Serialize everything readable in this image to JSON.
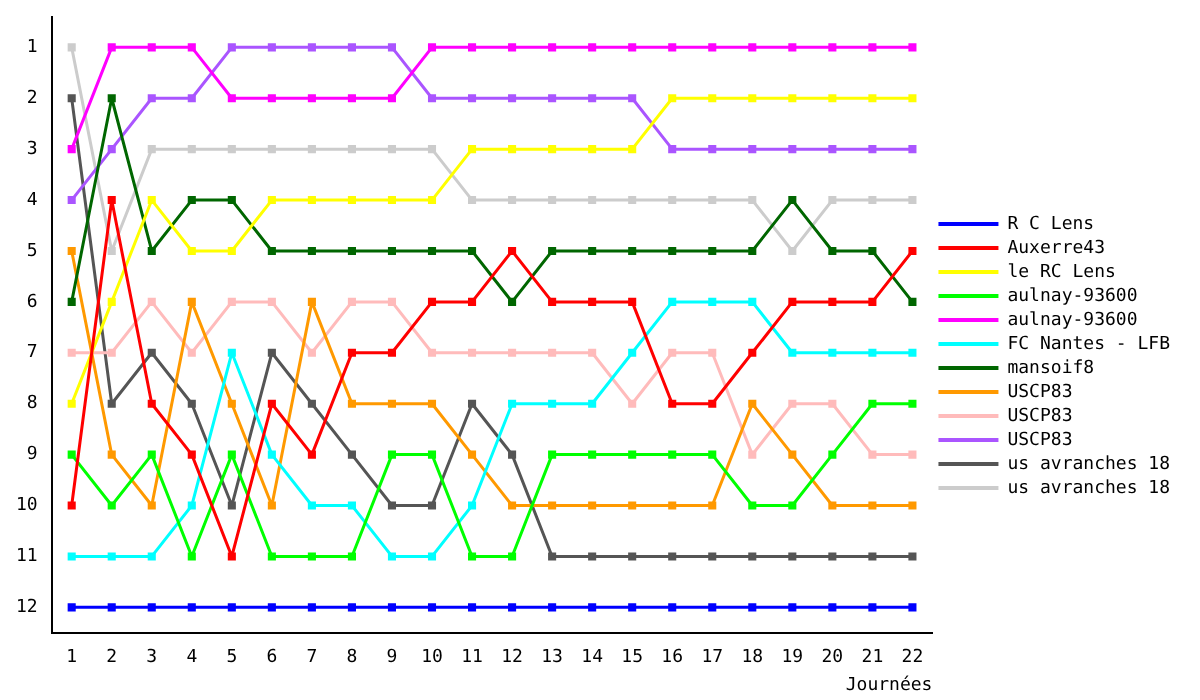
{
  "chart_data": {
    "type": "line",
    "xlabel": "Journées",
    "x": [
      1,
      2,
      3,
      4,
      5,
      6,
      7,
      8,
      9,
      10,
      11,
      12,
      13,
      14,
      15,
      16,
      17,
      18,
      19,
      20,
      21,
      22
    ],
    "xlim": [
      0.5,
      22.5
    ],
    "xticks": [
      1,
      2,
      3,
      4,
      5,
      6,
      7,
      8,
      9,
      10,
      11,
      12,
      13,
      14,
      15,
      16,
      17,
      18,
      19,
      20,
      21,
      22
    ],
    "ylim": [
      12.5,
      0.4
    ],
    "yticks": [
      1,
      2,
      3,
      4,
      5,
      6,
      7,
      8,
      9,
      10,
      11,
      12
    ],
    "grid": false,
    "legend": "right",
    "marker": "square",
    "line_style": "solid",
    "series": [
      {
        "name": "R C Lens",
        "color": "#0000ff",
        "values": [
          12,
          12,
          12,
          12,
          12,
          12,
          12,
          12,
          12,
          12,
          12,
          12,
          12,
          12,
          12,
          12,
          12,
          12,
          12,
          12,
          12,
          12
        ]
      },
      {
        "name": "Auxerre43",
        "color": "#ff0000",
        "values": [
          10,
          4,
          8,
          9,
          11,
          8,
          9,
          7,
          7,
          6,
          6,
          5,
          6,
          6,
          6,
          8,
          8,
          7,
          6,
          6,
          6,
          5
        ]
      },
      {
        "name": "le RC Lens",
        "color": "#ffff00",
        "values": [
          8,
          6,
          4,
          5,
          5,
          4,
          4,
          4,
          4,
          4,
          3,
          3,
          3,
          3,
          3,
          2,
          2,
          2,
          2,
          2,
          2,
          2
        ]
      },
      {
        "name": "aulnay-93600",
        "color": "#00ff00",
        "values": [
          9,
          10,
          9,
          11,
          9,
          11,
          11,
          11,
          9,
          9,
          11,
          11,
          9,
          9,
          9,
          9,
          9,
          10,
          10,
          9,
          8,
          8
        ]
      },
      {
        "name": "aulnay-93600",
        "color": "#ff00ff",
        "values": [
          3,
          1,
          1,
          1,
          2,
          2,
          2,
          2,
          2,
          1,
          1,
          1,
          1,
          1,
          1,
          1,
          1,
          1,
          1,
          1,
          1,
          1
        ]
      },
      {
        "name": "FC Nantes - LFB",
        "color": "#00ffff",
        "values": [
          11,
          11,
          11,
          10,
          7,
          9,
          10,
          10,
          11,
          11,
          10,
          8,
          8,
          8,
          7,
          6,
          6,
          6,
          7,
          7,
          7,
          7
        ]
      },
      {
        "name": "mansoif8",
        "color": "#006600",
        "values": [
          6,
          2,
          5,
          4,
          4,
          5,
          5,
          5,
          5,
          5,
          5,
          6,
          5,
          5,
          5,
          5,
          5,
          5,
          4,
          5,
          5,
          6
        ]
      },
      {
        "name": "USCP83",
        "color": "#ff9900",
        "values": [
          5,
          9,
          10,
          6,
          8,
          10,
          6,
          8,
          8,
          8,
          9,
          10,
          10,
          10,
          10,
          10,
          10,
          8,
          9,
          10,
          10,
          10
        ]
      },
      {
        "name": "USCP83",
        "color": "#ffbbbb",
        "values": [
          7,
          7,
          6,
          7,
          6,
          6,
          7,
          6,
          6,
          7,
          7,
          7,
          7,
          7,
          8,
          7,
          7,
          9,
          8,
          8,
          9,
          9
        ]
      },
      {
        "name": "USCP83",
        "color": "#aa55ff",
        "values": [
          4,
          3,
          2,
          2,
          1,
          1,
          1,
          1,
          1,
          2,
          2,
          2,
          2,
          2,
          2,
          3,
          3,
          3,
          3,
          3,
          3,
          3
        ]
      },
      {
        "name": "us avranches 18",
        "color": "#555555",
        "values": [
          2,
          8,
          7,
          8,
          10,
          7,
          8,
          9,
          10,
          10,
          8,
          9,
          11,
          11,
          11,
          11,
          11,
          11,
          11,
          11,
          11,
          11
        ]
      },
      {
        "name": "us avranches 18",
        "color": "#cccccc",
        "values": [
          1,
          5,
          3,
          3,
          3,
          3,
          3,
          3,
          3,
          3,
          4,
          4,
          4,
          4,
          4,
          4,
          4,
          4,
          5,
          4,
          4,
          4
        ]
      }
    ]
  }
}
